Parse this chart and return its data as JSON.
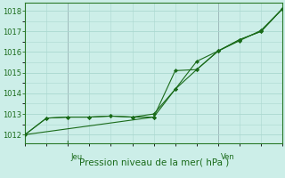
{
  "background_color": "#cceee8",
  "grid_color": "#aad8d0",
  "line_color": "#1a6b1a",
  "xlabel": "Pression niveau de la mer( hPa )",
  "ylim": [
    1011.6,
    1018.4
  ],
  "yticks": [
    1012,
    1013,
    1014,
    1015,
    1016,
    1017,
    1018
  ],
  "xlim": [
    0,
    12
  ],
  "line1_x": [
    0,
    1,
    2,
    3,
    4,
    5,
    6,
    7,
    8,
    9,
    10,
    11,
    12
  ],
  "line1_y": [
    1012.0,
    1012.8,
    1012.85,
    1012.85,
    1012.9,
    1012.85,
    1012.85,
    1015.1,
    1015.15,
    1016.05,
    1016.6,
    1017.0,
    1018.1
  ],
  "line2_x": [
    0,
    1,
    2,
    3,
    4,
    5,
    6,
    7,
    8,
    9,
    10,
    11,
    12
  ],
  "line2_y": [
    1012.0,
    1012.8,
    1012.85,
    1012.85,
    1012.9,
    1012.85,
    1013.0,
    1014.2,
    1015.55,
    1016.05,
    1016.6,
    1017.0,
    1018.1
  ],
  "line3_x": [
    0,
    6,
    7,
    8,
    9,
    10,
    11,
    12
  ],
  "line3_y": [
    1012.0,
    1012.85,
    1014.2,
    1015.15,
    1016.05,
    1016.55,
    1017.05,
    1018.1
  ],
  "jeu_x": 2.0,
  "ven_x": 9.0,
  "tick_fontsize": 6,
  "label_fontsize": 7.5
}
